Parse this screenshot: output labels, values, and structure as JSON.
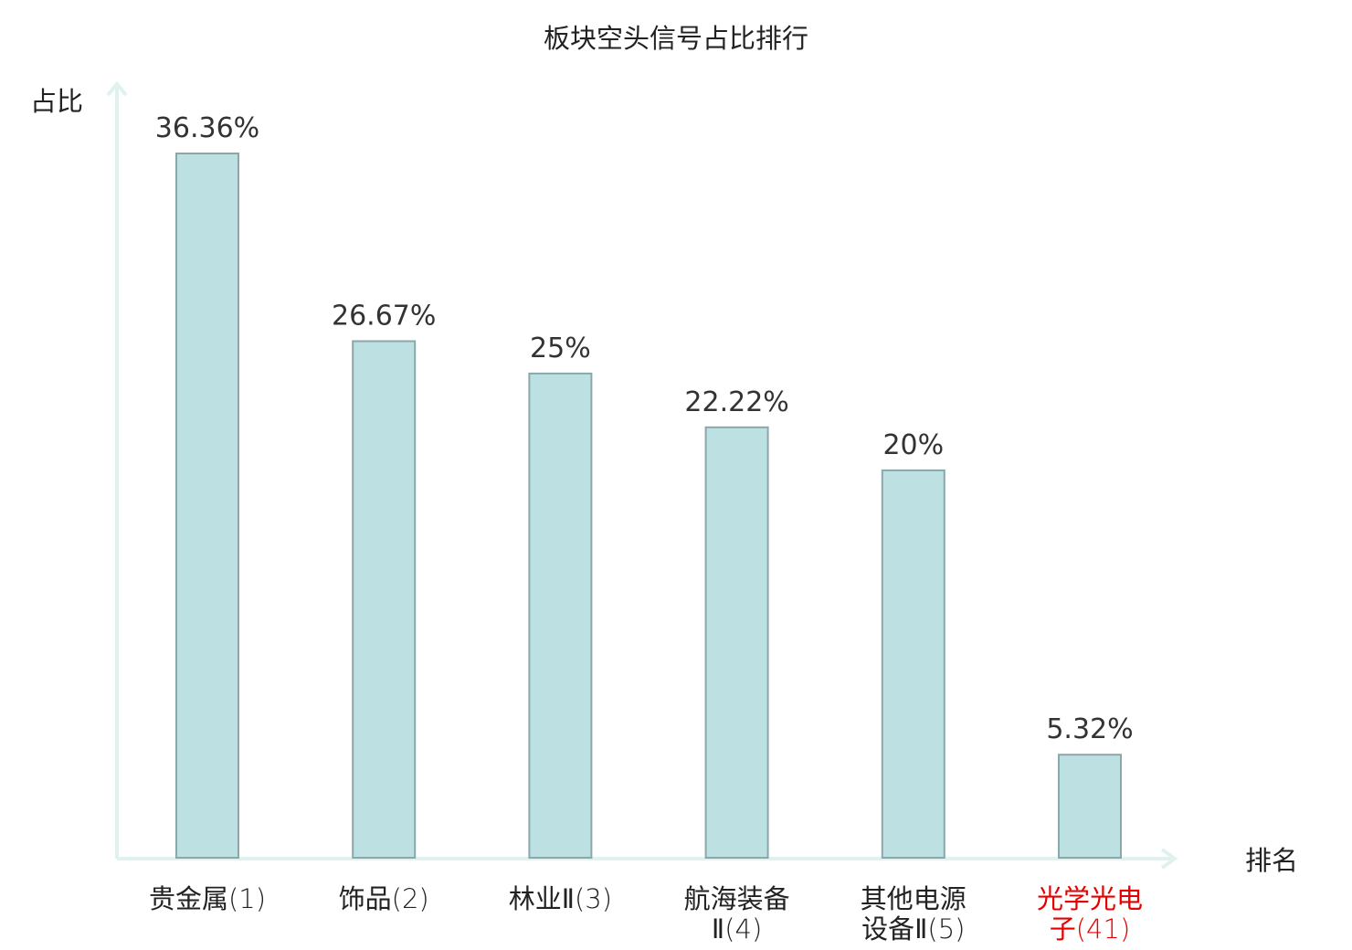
{
  "chart_data": {
    "type": "bar",
    "title": "板块空头信号占比排行",
    "ylabel": "占比",
    "xlabel": "排名",
    "ylim": [
      0,
      40
    ],
    "grid": false,
    "categories": [
      {
        "name_lines": [
          "贵金属"
        ],
        "rank": "(1)",
        "highlight": false
      },
      {
        "name_lines": [
          "饰品"
        ],
        "rank": "(2)",
        "highlight": false
      },
      {
        "name_lines": [
          "林业Ⅱ"
        ],
        "rank": "(3)",
        "highlight": false
      },
      {
        "name_lines": [
          "航海装备",
          "Ⅱ"
        ],
        "rank": "(4)",
        "highlight": false
      },
      {
        "name_lines": [
          "其他电源",
          "设备Ⅱ"
        ],
        "rank": "(5)",
        "highlight": false
      },
      {
        "name_lines": [
          "光学光电",
          "子"
        ],
        "rank": "(41)",
        "highlight": true
      }
    ],
    "values": [
      36.36,
      26.67,
      25,
      22.22,
      20,
      5.32
    ],
    "value_labels": [
      "36.36%",
      "26.67%",
      "25%",
      "22.22%",
      "20%",
      "5.32%"
    ]
  },
  "colors": {
    "bar_fill": "#bde0e2",
    "bar_stroke": "#8aa8aa",
    "axis": "#e0f2f0",
    "text": "#222222",
    "highlight": "#e60000"
  }
}
